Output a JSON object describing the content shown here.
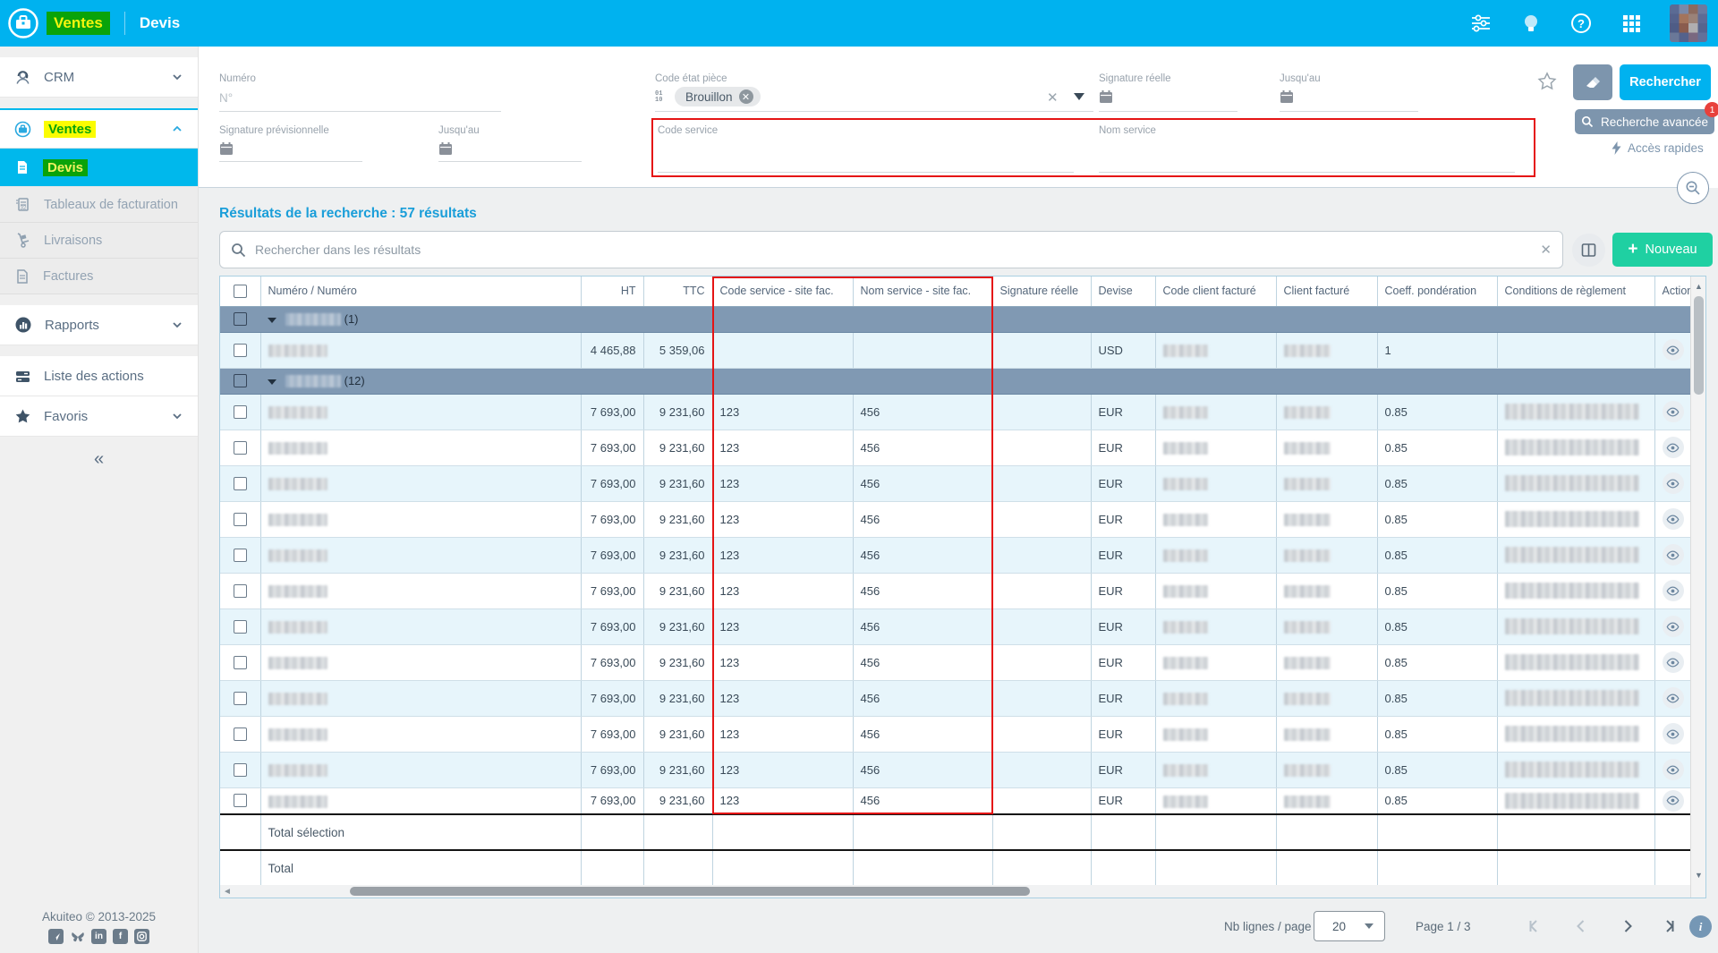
{
  "theme": {
    "topbar": "#00b2ef",
    "accent": "#00b8ec",
    "green_hl": "#0aa30a",
    "yellow_hl": "#fbfc02",
    "new_button": "#1fd0a2",
    "annotation_red": "#e51414",
    "group_row": "#8099b3"
  },
  "topbar": {
    "module": "Ventes",
    "page": "Devis"
  },
  "sidebar": {
    "items": {
      "crm": "CRM",
      "ventes": "Ventes",
      "devis": "Devis",
      "tableaux": "Tableaux de facturation",
      "livraisons": "Livraisons",
      "factures": "Factures",
      "rapports": "Rapports",
      "liste_actions": "Liste des actions",
      "favoris": "Favoris"
    },
    "collapse": "«",
    "footer": {
      "copyright": "Akuiteo © 2013-2025"
    }
  },
  "filters": {
    "numero": {
      "label": "Numéro",
      "placeholder": "N°"
    },
    "code_etat_piece": {
      "label": "Code état pièce",
      "chip": "Brouillon"
    },
    "signature_reelle": {
      "label": "Signature réelle"
    },
    "jusquau_1": {
      "label": "Jusqu'au"
    },
    "signature_previsionnelle": {
      "label": "Signature prévisionnelle"
    },
    "jusquau_2": {
      "label": "Jusqu'au"
    },
    "code_service": {
      "label": "Code service"
    },
    "nom_service": {
      "label": "Nom service"
    },
    "search_button": "Rechercher",
    "advanced_button": "Recherche avancée",
    "advanced_badge": "1",
    "quick_access": "Accès rapides"
  },
  "results": {
    "title": "Résultats de la recherche : 57 résultats",
    "search_placeholder": "Rechercher dans les résultats",
    "new_button": "Nouveau",
    "new_plus": "+"
  },
  "table": {
    "columns": [
      "Numéro / Numéro",
      "HT",
      "TTC",
      "Code service - site fac.",
      "Nom service - site fac.",
      "Signature réelle",
      "Devise",
      "Code client facturé",
      "Client facturé",
      "Coeff. pondération",
      "Conditions de règlement",
      "Actions"
    ],
    "groups": [
      {
        "count": "(1)",
        "rows": [
          {
            "ht": "4 465,88",
            "ttc": "5 359,06",
            "code_service": "",
            "nom_service": "",
            "devise": "USD",
            "coeff": "1",
            "conditions_redacted": false
          }
        ]
      },
      {
        "count": "(12)",
        "rows": [
          {
            "ht": "7 693,00",
            "ttc": "9 231,60",
            "code_service": "123",
            "nom_service": "456",
            "devise": "EUR",
            "coeff": "0.85",
            "conditions_redacted": true
          },
          {
            "ht": "7 693,00",
            "ttc": "9 231,60",
            "code_service": "123",
            "nom_service": "456",
            "devise": "EUR",
            "coeff": "0.85",
            "conditions_redacted": true
          },
          {
            "ht": "7 693,00",
            "ttc": "9 231,60",
            "code_service": "123",
            "nom_service": "456",
            "devise": "EUR",
            "coeff": "0.85",
            "conditions_redacted": true
          },
          {
            "ht": "7 693,00",
            "ttc": "9 231,60",
            "code_service": "123",
            "nom_service": "456",
            "devise": "EUR",
            "coeff": "0.85",
            "conditions_redacted": true
          },
          {
            "ht": "7 693,00",
            "ttc": "9 231,60",
            "code_service": "123",
            "nom_service": "456",
            "devise": "EUR",
            "coeff": "0.85",
            "conditions_redacted": true
          },
          {
            "ht": "7 693,00",
            "ttc": "9 231,60",
            "code_service": "123",
            "nom_service": "456",
            "devise": "EUR",
            "coeff": "0.85",
            "conditions_redacted": true
          },
          {
            "ht": "7 693,00",
            "ttc": "9 231,60",
            "code_service": "123",
            "nom_service": "456",
            "devise": "EUR",
            "coeff": "0.85",
            "conditions_redacted": true
          },
          {
            "ht": "7 693,00",
            "ttc": "9 231,60",
            "code_service": "123",
            "nom_service": "456",
            "devise": "EUR",
            "coeff": "0.85",
            "conditions_redacted": true
          },
          {
            "ht": "7 693,00",
            "ttc": "9 231,60",
            "code_service": "123",
            "nom_service": "456",
            "devise": "EUR",
            "coeff": "0.85",
            "conditions_redacted": true
          },
          {
            "ht": "7 693,00",
            "ttc": "9 231,60",
            "code_service": "123",
            "nom_service": "456",
            "devise": "EUR",
            "coeff": "0.85",
            "conditions_redacted": true
          },
          {
            "ht": "7 693,00",
            "ttc": "9 231,60",
            "code_service": "123",
            "nom_service": "456",
            "devise": "EUR",
            "coeff": "0.85",
            "conditions_redacted": true
          },
          {
            "ht": "7 693,00",
            "ttc": "9 231,60",
            "code_service": "123",
            "nom_service": "456",
            "devise": "EUR",
            "coeff": "0.85",
            "conditions_redacted": true
          }
        ]
      }
    ],
    "totals": {
      "selection": "Total sélection",
      "total": "Total"
    }
  },
  "pagination": {
    "rows_per_page_label": "Nb lignes / page :",
    "rows_per_page": "20",
    "page_label": "Page 1 / 3"
  }
}
